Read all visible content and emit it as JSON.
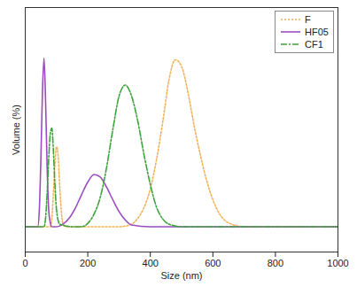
{
  "chart_data": {
    "type": "line",
    "x_label": "Size (nm)",
    "y_label": "Volume (%)",
    "xlim": [
      0,
      1000
    ],
    "xticks": [
      0,
      200,
      400,
      600,
      800,
      1000
    ],
    "ylim": [
      -3,
      26
    ],
    "tick_labels": "x",
    "legend": "top-right",
    "series": [
      {
        "name": "F",
        "color": "#f2b35c",
        "line_style": "dotted",
        "x": [
          0,
          80,
          85,
          90,
          95,
          100,
          105,
          110,
          115,
          120,
          130,
          300,
          340,
          360,
          380,
          400,
          420,
          440,
          460,
          480,
          500,
          520,
          540,
          560,
          580,
          600,
          620,
          640,
          660,
          700,
          1000
        ],
        "values": [
          0,
          0,
          1,
          4,
          7.5,
          9.5,
          8.5,
          5,
          2,
          0.5,
          0,
          0,
          0.3,
          1,
          2.3,
          4.5,
          8,
          12.5,
          17.5,
          19.8,
          19,
          16,
          12,
          8.5,
          5.5,
          3.2,
          1.6,
          0.7,
          0.3,
          0,
          0
        ]
      },
      {
        "name": "HF05",
        "color": "#9b4dbf",
        "line_style": "solid",
        "x": [
          0,
          40,
          45,
          50,
          55,
          60,
          65,
          70,
          75,
          80,
          85,
          100,
          120,
          140,
          160,
          180,
          200,
          220,
          240,
          260,
          280,
          300,
          320,
          340,
          400,
          1000
        ],
        "values": [
          0,
          0,
          2,
          8,
          16,
          20,
          15,
          7,
          2,
          0.5,
          0,
          0,
          0.3,
          1,
          2.2,
          3.8,
          5.3,
          6.2,
          5.9,
          4.7,
          3.2,
          1.8,
          0.8,
          0.2,
          0,
          0
        ]
      },
      {
        "name": "CF1",
        "color": "#3aa33a",
        "line_style": "dashdot",
        "x": [
          0,
          60,
          65,
          70,
          75,
          80,
          85,
          90,
          95,
          100,
          110,
          150,
          180,
          200,
          220,
          240,
          260,
          280,
          300,
          320,
          340,
          360,
          380,
          400,
          420,
          440,
          460,
          500,
          1000
        ],
        "values": [
          0,
          0,
          1,
          4,
          8,
          11,
          11.7,
          9,
          5,
          2,
          0.3,
          0,
          0,
          0.4,
          1.5,
          3.5,
          7,
          11.5,
          15.5,
          16.8,
          15.5,
          12.5,
          8.5,
          5,
          2.3,
          0.9,
          0.3,
          0,
          0
        ]
      }
    ]
  }
}
